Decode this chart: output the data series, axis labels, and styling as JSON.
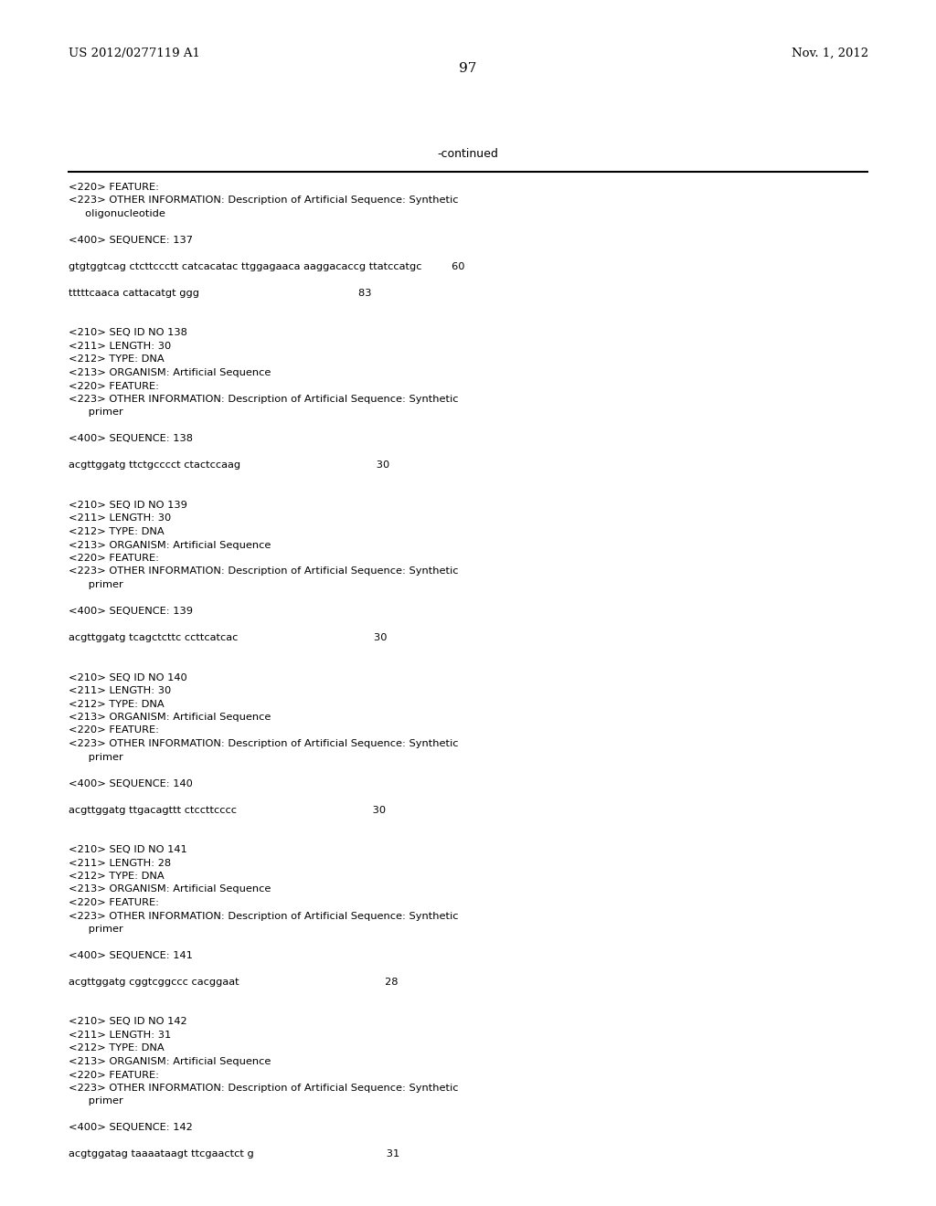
{
  "header_left": "US 2012/0277119 A1",
  "header_right": "Nov. 1, 2012",
  "page_number": "97",
  "continued_label": "-continued",
  "background_color": "#ffffff",
  "text_color": "#000000",
  "lines": [
    {
      "text": "<220> FEATURE:"
    },
    {
      "text": "<223> OTHER INFORMATION: Description of Artificial Sequence: Synthetic"
    },
    {
      "text": "     oligonucleotide"
    },
    {
      "text": ""
    },
    {
      "text": "<400> SEQUENCE: 137"
    },
    {
      "text": ""
    },
    {
      "text": "gtgtggtcag ctcttccctt catcacatac ttggagaaca aaggacaccg ttatccatgc         60"
    },
    {
      "text": ""
    },
    {
      "text": "tttttcaaca cattacatgt ggg                                                83"
    },
    {
      "text": ""
    },
    {
      "text": ""
    },
    {
      "text": "<210> SEQ ID NO 138"
    },
    {
      "text": "<211> LENGTH: 30"
    },
    {
      "text": "<212> TYPE: DNA"
    },
    {
      "text": "<213> ORGANISM: Artificial Sequence"
    },
    {
      "text": "<220> FEATURE:"
    },
    {
      "text": "<223> OTHER INFORMATION: Description of Artificial Sequence: Synthetic"
    },
    {
      "text": "      primer"
    },
    {
      "text": ""
    },
    {
      "text": "<400> SEQUENCE: 138"
    },
    {
      "text": ""
    },
    {
      "text": "acgttggatg ttctgcccct ctactccaag                                         30"
    },
    {
      "text": ""
    },
    {
      "text": ""
    },
    {
      "text": "<210> SEQ ID NO 139"
    },
    {
      "text": "<211> LENGTH: 30"
    },
    {
      "text": "<212> TYPE: DNA"
    },
    {
      "text": "<213> ORGANISM: Artificial Sequence"
    },
    {
      "text": "<220> FEATURE:"
    },
    {
      "text": "<223> OTHER INFORMATION: Description of Artificial Sequence: Synthetic"
    },
    {
      "text": "      primer"
    },
    {
      "text": ""
    },
    {
      "text": "<400> SEQUENCE: 139"
    },
    {
      "text": ""
    },
    {
      "text": "acgttggatg tcagctcttc ccttcatcac                                         30"
    },
    {
      "text": ""
    },
    {
      "text": ""
    },
    {
      "text": "<210> SEQ ID NO 140"
    },
    {
      "text": "<211> LENGTH: 30"
    },
    {
      "text": "<212> TYPE: DNA"
    },
    {
      "text": "<213> ORGANISM: Artificial Sequence"
    },
    {
      "text": "<220> FEATURE:"
    },
    {
      "text": "<223> OTHER INFORMATION: Description of Artificial Sequence: Synthetic"
    },
    {
      "text": "      primer"
    },
    {
      "text": ""
    },
    {
      "text": "<400> SEQUENCE: 140"
    },
    {
      "text": ""
    },
    {
      "text": "acgttggatg ttgacagttt ctccttcccc                                         30"
    },
    {
      "text": ""
    },
    {
      "text": ""
    },
    {
      "text": "<210> SEQ ID NO 141"
    },
    {
      "text": "<211> LENGTH: 28"
    },
    {
      "text": "<212> TYPE: DNA"
    },
    {
      "text": "<213> ORGANISM: Artificial Sequence"
    },
    {
      "text": "<220> FEATURE:"
    },
    {
      "text": "<223> OTHER INFORMATION: Description of Artificial Sequence: Synthetic"
    },
    {
      "text": "      primer"
    },
    {
      "text": ""
    },
    {
      "text": "<400> SEQUENCE: 141"
    },
    {
      "text": ""
    },
    {
      "text": "acgttggatg cggtcggccc cacggaat                                            28"
    },
    {
      "text": ""
    },
    {
      "text": ""
    },
    {
      "text": "<210> SEQ ID NO 142"
    },
    {
      "text": "<211> LENGTH: 31"
    },
    {
      "text": "<212> TYPE: DNA"
    },
    {
      "text": "<213> ORGANISM: Artificial Sequence"
    },
    {
      "text": "<220> FEATURE:"
    },
    {
      "text": "<223> OTHER INFORMATION: Description of Artificial Sequence: Synthetic"
    },
    {
      "text": "      primer"
    },
    {
      "text": ""
    },
    {
      "text": "<400> SEQUENCE: 142"
    },
    {
      "text": ""
    },
    {
      "text": "acgtggatag taaaataagt ttcgaactct g                                        31"
    }
  ]
}
